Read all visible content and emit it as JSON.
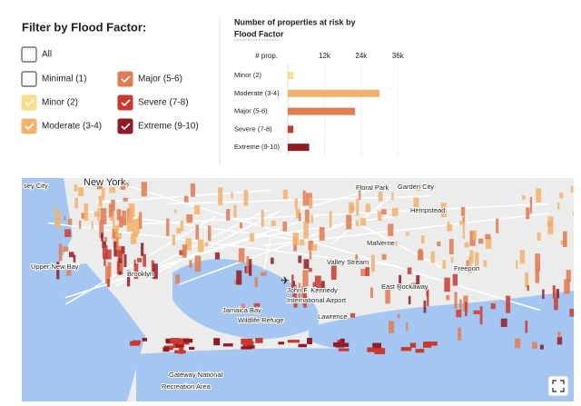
{
  "filter": {
    "title": "Filter by Flood Factor:",
    "options": [
      {
        "label": "All",
        "checked": false,
        "color": "#ffffff"
      },
      {
        "label": "Minimal (1)",
        "checked": false,
        "color": "#ffffff"
      },
      {
        "label": "Minor (2)",
        "checked": true,
        "color": "#f9de8e"
      },
      {
        "label": "Moderate (3-4)",
        "checked": true,
        "color": "#f2b26c"
      },
      {
        "label": "Major (5-6)",
        "checked": true,
        "color": "#e27a52"
      },
      {
        "label": "Severe (7-8)",
        "checked": true,
        "color": "#c9392f"
      },
      {
        "label": "Extreme (9-10)",
        "checked": true,
        "color": "#901b25"
      }
    ]
  },
  "chart_data": {
    "type": "bar",
    "orientation": "horizontal",
    "title": "Number of properties at risk by",
    "subtitle": "Flood Factor",
    "value_header": "# prop.",
    "categories": [
      "Minor (2)",
      "Moderate (3-4)",
      "Major (5-6)",
      "Severe (7-8)",
      "Extreme (9-10)"
    ],
    "values": [
      1800,
      30000,
      22000,
      1800,
      7000
    ],
    "colors": [
      "#f9de8e",
      "#f2b26c",
      "#e27a52",
      "#c9392f",
      "#901b25"
    ],
    "xlim": [
      0,
      38000
    ],
    "xticks": [
      {
        "value": 12000,
        "label": "12k"
      },
      {
        "value": 24000,
        "label": "24k"
      },
      {
        "value": 36000,
        "label": "36k"
      }
    ],
    "grid": true
  },
  "map": {
    "labels": [
      "sey City",
      "New York",
      "Upper New Bay",
      "Brooklyn",
      "Floral Park",
      "Garden City",
      "Hempstead",
      "Malverne",
      "Valley Stream",
      "John F. Kennedy",
      "International Airport",
      "Jamaica Bay",
      "Wildlife Refuge",
      "Lawrence",
      "East Rockaway",
      "Freeport",
      "Gateway National",
      "Recreation Area"
    ]
  }
}
